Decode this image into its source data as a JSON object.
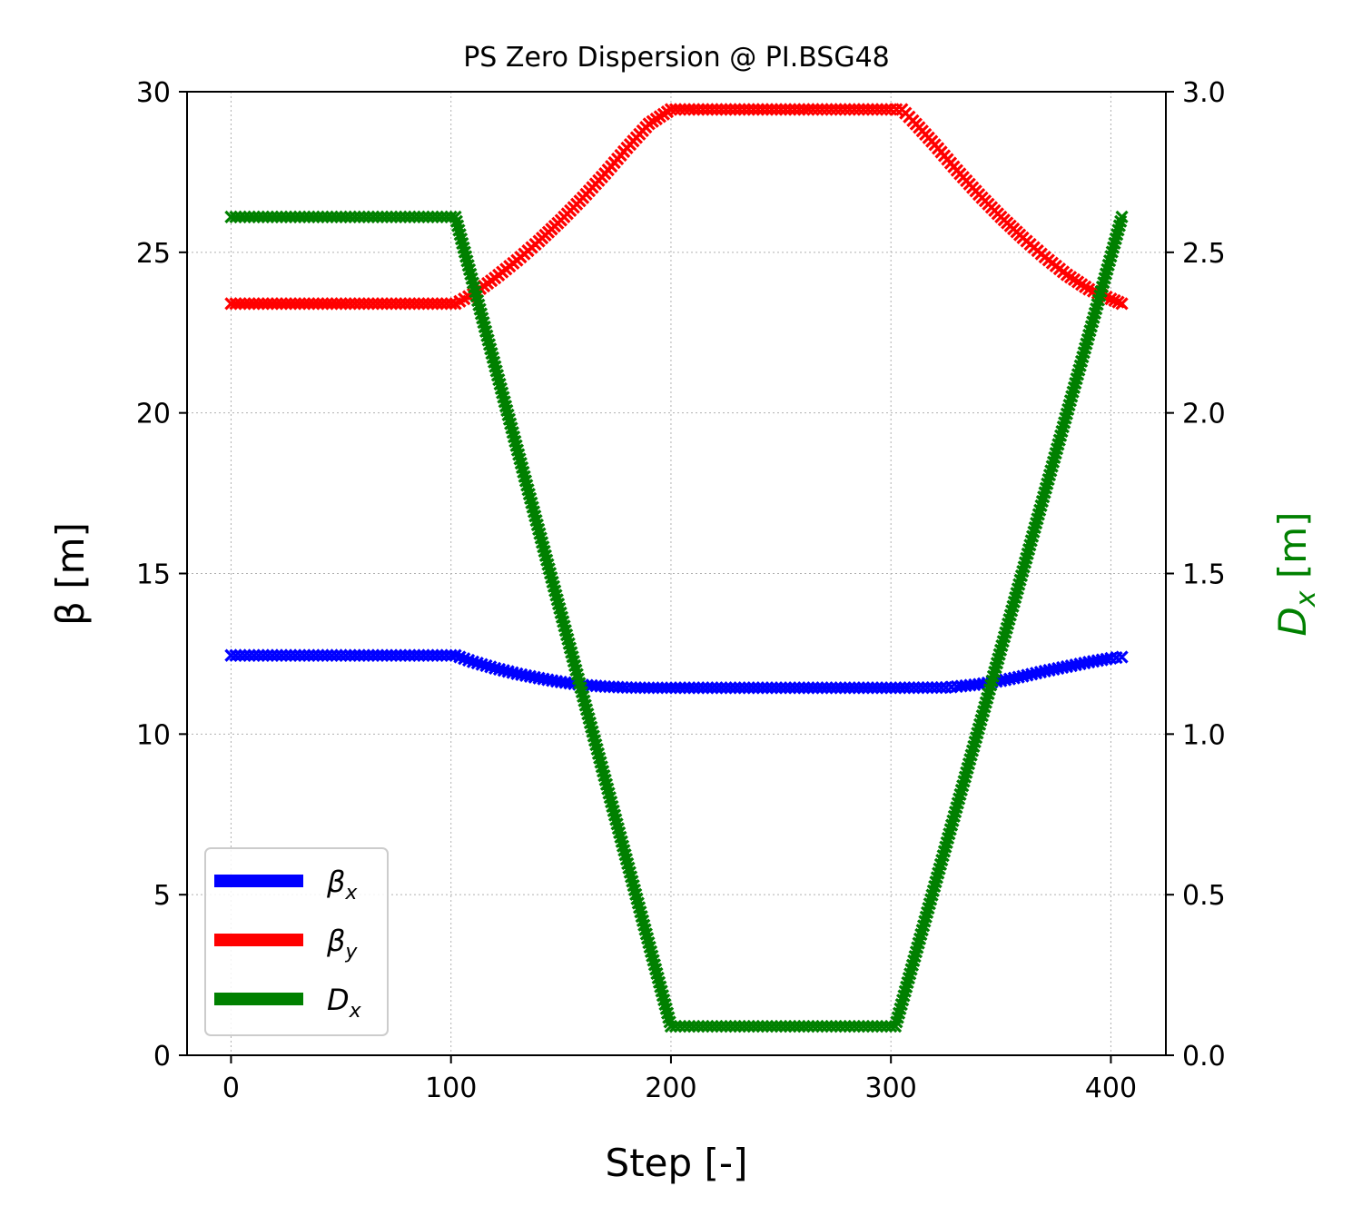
{
  "chart_data": {
    "type": "line",
    "title": "PS Zero Dispersion @ PI.BSG48",
    "xlabel": "Step [-]",
    "ylabel_left": "β [m]",
    "ylabel_right": {
      "main": "D",
      "sub": "x",
      "unit": " [m]"
    },
    "xlim": [
      -20,
      425
    ],
    "ylim_left": [
      0,
      30
    ],
    "ylim_right": [
      0,
      3.0
    ],
    "x_ticks": [
      "0",
      "100",
      "200",
      "300",
      "400"
    ],
    "y_left_ticks": [
      "0",
      "5",
      "10",
      "15",
      "20",
      "25",
      "30"
    ],
    "y_right_ticks": [
      "0.0",
      "0.5",
      "1.0",
      "1.5",
      "2.0",
      "2.5",
      "3.0"
    ],
    "grid": true,
    "legend_position": "lower-left",
    "marker": "x",
    "series": [
      {
        "name": "βx",
        "label_main": "β",
        "label_sub": "x",
        "axis": "left",
        "color": "#0000ff",
        "x": [
          0,
          100,
          102,
          110,
          120,
          130,
          140,
          150,
          160,
          170,
          180,
          190,
          200,
          300,
          325,
          330,
          340,
          350,
          360,
          370,
          380,
          390,
          400,
          405
        ],
        "y": [
          12.45,
          12.45,
          12.45,
          12.25,
          12.05,
          11.88,
          11.74,
          11.62,
          11.53,
          11.48,
          11.45,
          11.44,
          11.44,
          11.44,
          11.45,
          11.48,
          11.55,
          11.66,
          11.8,
          11.96,
          12.1,
          12.24,
          12.36,
          12.4
        ]
      },
      {
        "name": "βy",
        "label_main": "β",
        "label_sub": "y",
        "axis": "left",
        "color": "#ff0000",
        "x": [
          0,
          100,
          102,
          110,
          120,
          130,
          140,
          150,
          160,
          170,
          180,
          190,
          200,
          300,
          305,
          310,
          320,
          330,
          340,
          350,
          360,
          370,
          380,
          390,
          400,
          405
        ],
        "y": [
          23.4,
          23.4,
          23.4,
          23.7,
          24.2,
          24.75,
          25.35,
          26.0,
          26.7,
          27.45,
          28.25,
          29.0,
          29.45,
          29.45,
          29.45,
          29.1,
          28.35,
          27.55,
          26.8,
          26.1,
          25.45,
          24.85,
          24.3,
          23.85,
          23.55,
          23.4
        ]
      },
      {
        "name": "Dx",
        "label_main": "D",
        "label_sub": "x",
        "axis": "right",
        "color": "#008000",
        "x": [
          0,
          100,
          102,
          200,
          300,
          302,
          405
        ],
        "y": [
          2.61,
          2.61,
          2.61,
          0.09,
          0.09,
          0.09,
          2.61
        ]
      }
    ]
  }
}
